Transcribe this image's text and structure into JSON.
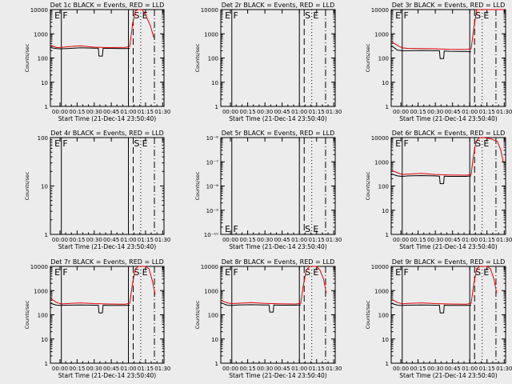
{
  "figure": {
    "start_time_label": "Start Time (21-Dec-14 23:50:40)",
    "ylabel": "Counts/sec",
    "colors": {
      "events": "#000000",
      "lld": "#e00000",
      "background": "#ececec"
    }
  },
  "chart_data": [
    {
      "title": "Det 1c BLACK = Events, RED = LLD",
      "type": "line",
      "yscale": "log",
      "ylim": [
        1,
        10000
      ],
      "yticks": [
        "1",
        "10",
        "100",
        "1000",
        "10000"
      ],
      "xlim": [
        -0.14,
        1.52
      ],
      "xticks": [
        "00:00",
        "00:15",
        "00:30",
        "00:45",
        "01:00",
        "01:15",
        "01:30"
      ],
      "vlines": [
        {
          "x": 0.02,
          "style": "solid"
        },
        {
          "x": 1.0,
          "style": "solid"
        },
        {
          "x": 1.07,
          "style": "dashed"
        },
        {
          "x": 1.18,
          "style": "dotted"
        },
        {
          "x": 1.38,
          "style": "dashdot"
        }
      ],
      "annotations": [
        {
          "text": "E",
          "x": -0.08,
          "ypos": "top"
        },
        {
          "text": "F",
          "x": 0.04,
          "ypos": "top"
        },
        {
          "text": "S",
          "x": 1.08,
          "ypos": "top"
        },
        {
          "text": "E",
          "x": 1.2,
          "ypos": "top"
        }
      ],
      "series": [
        {
          "role": "events",
          "x": [
            -0.14,
            -0.05,
            0.02,
            0.1,
            0.3,
            0.5,
            0.56,
            0.57,
            0.62,
            0.63,
            0.7,
            0.95,
            1.02
          ],
          "y": [
            270,
            245,
            240,
            245,
            265,
            255,
            255,
            120,
            120,
            255,
            250,
            245,
            250
          ]
        },
        {
          "role": "lld",
          "x": [
            -0.14,
            -0.05,
            0.02,
            0.1,
            0.3,
            0.5,
            0.7,
            0.95,
            1.02,
            1.06,
            1.1,
            1.15,
            1.2,
            1.25,
            1.32,
            1.37
          ],
          "y": [
            340,
            270,
            275,
            290,
            320,
            280,
            270,
            275,
            300,
            2500,
            9000,
            13000,
            10000,
            6000,
            2200,
            700
          ]
        }
      ]
    },
    {
      "title": "Det 2r BLACK = Events, RED = LLD",
      "type": "line",
      "yscale": "log",
      "ylim": [
        1,
        10000
      ],
      "yticks": [
        "1",
        "10",
        "100",
        "1000",
        "10000"
      ],
      "xlim": [
        -0.14,
        1.52
      ],
      "xticks": [
        "00:00",
        "00:15",
        "00:30",
        "00:45",
        "01:00",
        "01:15",
        "01:30"
      ],
      "vlines": [
        {
          "x": 0.02,
          "style": "solid"
        },
        {
          "x": 1.0,
          "style": "solid"
        },
        {
          "x": 1.07,
          "style": "dashed"
        },
        {
          "x": 1.18,
          "style": "dotted"
        },
        {
          "x": 1.38,
          "style": "dashdot"
        }
      ],
      "annotations": [
        {
          "text": "E",
          "x": -0.08,
          "ypos": "top"
        },
        {
          "text": "F",
          "x": 0.04,
          "ypos": "top"
        },
        {
          "text": "S",
          "x": 1.08,
          "ypos": "top"
        },
        {
          "text": "E",
          "x": 1.2,
          "ypos": "top"
        }
      ],
      "series": []
    },
    {
      "title": "Det 3r BLACK = Events, RED = LLD",
      "type": "line",
      "yscale": "log",
      "ylim": [
        1,
        10000
      ],
      "yticks": [
        "1",
        "10",
        "100",
        "1000",
        "10000"
      ],
      "xlim": [
        -0.14,
        1.52
      ],
      "xticks": [
        "00:00",
        "00:15",
        "00:30",
        "00:45",
        "01:00",
        "01:15",
        "01:30"
      ],
      "vlines": [
        {
          "x": 0.02,
          "style": "solid"
        },
        {
          "x": 1.0,
          "style": "solid"
        },
        {
          "x": 1.07,
          "style": "dashed"
        },
        {
          "x": 1.18,
          "style": "dotted"
        },
        {
          "x": 1.38,
          "style": "dashdot"
        }
      ],
      "annotations": [
        {
          "text": "E",
          "x": -0.08,
          "ypos": "top"
        },
        {
          "text": "F",
          "x": 0.04,
          "ypos": "top"
        },
        {
          "text": "S",
          "x": 1.08,
          "ypos": "top"
        },
        {
          "text": "E",
          "x": 1.2,
          "ypos": "top"
        }
      ],
      "series": [
        {
          "role": "events",
          "x": [
            -0.14,
            -0.05,
            0.02,
            0.1,
            0.3,
            0.5,
            0.56,
            0.57,
            0.62,
            0.63,
            0.7,
            0.95,
            1.02
          ],
          "y": [
            330,
            210,
            200,
            200,
            205,
            200,
            200,
            95,
            95,
            195,
            190,
            185,
            180
          ]
        },
        {
          "role": "lld",
          "x": [
            -0.14,
            -0.05,
            0.02,
            0.1,
            0.3,
            0.5,
            0.7,
            0.95,
            1.02,
            1.06,
            1.1,
            1.15,
            1.2,
            1.3,
            1.4,
            1.45,
            1.5
          ],
          "y": [
            480,
            330,
            260,
            250,
            245,
            240,
            230,
            225,
            240,
            1800,
            10000,
            14000,
            12000,
            11500,
            11000,
            10500,
            10000
          ]
        }
      ]
    },
    {
      "title": "Det 4r BLACK = Events, RED = LLD",
      "type": "line",
      "yscale": "log",
      "ylim": [
        1,
        100
      ],
      "yticks": [
        "1",
        "10",
        "100"
      ],
      "xlim": [
        -0.14,
        1.52
      ],
      "xticks": [
        "00:00",
        "00:15",
        "00:30",
        "00:45",
        "01:00",
        "01:15",
        "01:30"
      ],
      "vlines": [
        {
          "x": 0.02,
          "style": "solid"
        },
        {
          "x": 1.0,
          "style": "solid"
        },
        {
          "x": 1.07,
          "style": "dashed"
        },
        {
          "x": 1.18,
          "style": "dotted"
        },
        {
          "x": 1.38,
          "style": "dashdot"
        }
      ],
      "annotations": [
        {
          "text": "E",
          "x": -0.08,
          "ypos": "top"
        },
        {
          "text": "F",
          "x": 0.04,
          "ypos": "top"
        },
        {
          "text": "S",
          "x": 1.08,
          "ypos": "top"
        },
        {
          "text": "E",
          "x": 1.2,
          "ypos": "top"
        }
      ],
      "series": []
    },
    {
      "title": "Det 5r BLACK = Events, RED = LLD",
      "type": "line",
      "yscale": "log",
      "ylim": [
        1e-10,
        1e-06
      ],
      "yticks": [
        "10⁻¹⁰",
        "10⁻⁹",
        "10⁻⁸",
        "10⁻⁷",
        "10⁻⁶"
      ],
      "xlim": [
        -0.14,
        1.52
      ],
      "xticks": [
        "00:00",
        "00:15",
        "00:30",
        "00:45",
        "01:00",
        "01:15",
        "01:30"
      ],
      "vlines": [
        {
          "x": 0.02,
          "style": "solid"
        },
        {
          "x": 1.0,
          "style": "solid"
        },
        {
          "x": 1.07,
          "style": "dashed"
        },
        {
          "x": 1.18,
          "style": "dotted"
        },
        {
          "x": 1.38,
          "style": "dashdot"
        }
      ],
      "annotations": [
        {
          "text": "E",
          "x": -0.08,
          "ypos": "bottom"
        },
        {
          "text": "F",
          "x": 0.04,
          "ypos": "bottom"
        },
        {
          "text": "S",
          "x": 1.08,
          "ypos": "bottom"
        },
        {
          "text": "E",
          "x": 1.2,
          "ypos": "bottom"
        }
      ],
      "series": []
    },
    {
      "title": "Det 6r BLACK = Events, RED = LLD",
      "type": "line",
      "yscale": "log",
      "ylim": [
        1,
        10000
      ],
      "yticks": [
        "1",
        "10",
        "100",
        "1000",
        "10000"
      ],
      "xlim": [
        -0.14,
        1.52
      ],
      "xticks": [
        "00:00",
        "00:15",
        "00:30",
        "00:45",
        "01:00",
        "01:15",
        "01:30"
      ],
      "vlines": [
        {
          "x": 0.02,
          "style": "solid"
        },
        {
          "x": 1.0,
          "style": "solid"
        },
        {
          "x": 1.07,
          "style": "dashed"
        },
        {
          "x": 1.18,
          "style": "dotted"
        },
        {
          "x": 1.38,
          "style": "dashdot"
        }
      ],
      "annotations": [
        {
          "text": "E",
          "x": -0.08,
          "ypos": "top"
        },
        {
          "text": "F",
          "x": 0.04,
          "ypos": "top"
        },
        {
          "text": "S",
          "x": 1.08,
          "ypos": "top"
        },
        {
          "text": "E",
          "x": 1.2,
          "ypos": "top"
        }
      ],
      "series": [
        {
          "role": "events",
          "x": [
            -0.14,
            -0.05,
            0.02,
            0.1,
            0.3,
            0.5,
            0.56,
            0.57,
            0.62,
            0.63,
            0.7,
            0.95,
            1.02
          ],
          "y": [
            320,
            260,
            250,
            260,
            270,
            260,
            255,
            125,
            125,
            255,
            250,
            250,
            260
          ]
        },
        {
          "role": "lld",
          "x": [
            -0.14,
            -0.05,
            0.02,
            0.1,
            0.3,
            0.5,
            0.7,
            0.95,
            1.02,
            1.05,
            1.09,
            1.14,
            1.2,
            1.3,
            1.4,
            1.45,
            1.49
          ],
          "y": [
            450,
            350,
            300,
            310,
            330,
            300,
            285,
            280,
            300,
            1500,
            7000,
            11000,
            10500,
            9000,
            7000,
            3000,
            900
          ]
        }
      ]
    },
    {
      "title": "Det 7r BLACK = Events, RED = LLD",
      "type": "line",
      "yscale": "log",
      "ylim": [
        1,
        10000
      ],
      "yticks": [
        "1",
        "10",
        "100",
        "1000",
        "10000"
      ],
      "xlim": [
        -0.14,
        1.52
      ],
      "xticks": [
        "00:00",
        "00:15",
        "00:30",
        "00:45",
        "01:00",
        "01:15",
        "01:30"
      ],
      "vlines": [
        {
          "x": 0.02,
          "style": "solid"
        },
        {
          "x": 1.0,
          "style": "solid"
        },
        {
          "x": 1.07,
          "style": "dashed"
        },
        {
          "x": 1.18,
          "style": "dotted"
        },
        {
          "x": 1.38,
          "style": "dashdot"
        }
      ],
      "annotations": [
        {
          "text": "E",
          "x": -0.08,
          "ypos": "top"
        },
        {
          "text": "F",
          "x": 0.04,
          "ypos": "top"
        },
        {
          "text": "S",
          "x": 1.08,
          "ypos": "top"
        },
        {
          "text": "E",
          "x": 1.2,
          "ypos": "top"
        }
      ],
      "series": [
        {
          "role": "events",
          "x": [
            -0.14,
            -0.05,
            0.02,
            0.1,
            0.3,
            0.5,
            0.56,
            0.57,
            0.62,
            0.63,
            0.7,
            0.95,
            1.02
          ],
          "y": [
            300,
            250,
            245,
            250,
            255,
            250,
            250,
            120,
            120,
            250,
            245,
            245,
            250
          ]
        },
        {
          "role": "lld",
          "x": [
            -0.14,
            -0.05,
            0.02,
            0.1,
            0.3,
            0.5,
            0.7,
            0.95,
            1.02,
            1.06,
            1.1,
            1.15,
            1.2,
            1.25,
            1.3,
            1.35,
            1.39
          ],
          "y": [
            480,
            320,
            280,
            290,
            310,
            290,
            280,
            275,
            300,
            2000,
            8000,
            13000,
            14000,
            12000,
            8000,
            2500,
            700
          ]
        }
      ]
    },
    {
      "title": "Det 8r BLACK = Events, RED = LLD",
      "type": "line",
      "yscale": "log",
      "ylim": [
        1,
        10000
      ],
      "yticks": [
        "1",
        "10",
        "100",
        "1000",
        "10000"
      ],
      "xlim": [
        -0.14,
        1.52
      ],
      "xticks": [
        "00:00",
        "00:15",
        "00:30",
        "00:45",
        "01:00",
        "01:15",
        "01:30"
      ],
      "vlines": [
        {
          "x": 0.02,
          "style": "solid"
        },
        {
          "x": 1.0,
          "style": "solid"
        },
        {
          "x": 1.07,
          "style": "dashed"
        },
        {
          "x": 1.18,
          "style": "dotted"
        },
        {
          "x": 1.38,
          "style": "dashdot"
        }
      ],
      "annotations": [
        {
          "text": "E",
          "x": -0.08,
          "ypos": "top"
        },
        {
          "text": "F",
          "x": 0.04,
          "ypos": "top"
        },
        {
          "text": "S",
          "x": 1.08,
          "ypos": "top"
        },
        {
          "text": "E",
          "x": 1.2,
          "ypos": "top"
        }
      ],
      "series": [
        {
          "role": "events",
          "x": [
            -0.14,
            -0.05,
            0.02,
            0.1,
            0.3,
            0.5,
            0.56,
            0.57,
            0.62,
            0.63,
            0.7,
            0.95,
            1.02
          ],
          "y": [
            320,
            250,
            245,
            255,
            260,
            255,
            255,
            130,
            130,
            255,
            250,
            250,
            255
          ]
        },
        {
          "role": "lld",
          "x": [
            -0.14,
            -0.05,
            0.02,
            0.1,
            0.3,
            0.5,
            0.7,
            0.95,
            1.02,
            1.06,
            1.1,
            1.15,
            1.2,
            1.25,
            1.3,
            1.35,
            1.39
          ],
          "y": [
            400,
            310,
            290,
            300,
            320,
            295,
            285,
            280,
            300,
            1800,
            7000,
            12000,
            13500,
            11000,
            7000,
            3000,
            800
          ]
        }
      ]
    },
    {
      "title": "Det 9r BLACK = Events, RED = LLD",
      "type": "line",
      "yscale": "log",
      "ylim": [
        1,
        10000
      ],
      "yticks": [
        "1",
        "10",
        "100",
        "1000",
        "10000"
      ],
      "xlim": [
        -0.14,
        1.52
      ],
      "xticks": [
        "00:00",
        "00:15",
        "00:30",
        "00:45",
        "01:00",
        "01:15",
        "01:30"
      ],
      "vlines": [
        {
          "x": 0.02,
          "style": "solid"
        },
        {
          "x": 1.0,
          "style": "solid"
        },
        {
          "x": 1.07,
          "style": "dashed"
        },
        {
          "x": 1.18,
          "style": "dotted"
        },
        {
          "x": 1.38,
          "style": "dashdot"
        }
      ],
      "annotations": [
        {
          "text": "E",
          "x": -0.08,
          "ypos": "top"
        },
        {
          "text": "F",
          "x": 0.04,
          "ypos": "top"
        },
        {
          "text": "S",
          "x": 1.08,
          "ypos": "top"
        },
        {
          "text": "E",
          "x": 1.2,
          "ypos": "top"
        }
      ],
      "series": [
        {
          "role": "events",
          "x": [
            -0.14,
            -0.05,
            0.02,
            0.1,
            0.3,
            0.5,
            0.56,
            0.57,
            0.62,
            0.63,
            0.7,
            0.95,
            1.02
          ],
          "y": [
            300,
            250,
            245,
            250,
            255,
            250,
            250,
            120,
            120,
            250,
            245,
            245,
            250
          ]
        },
        {
          "role": "lld",
          "x": [
            -0.14,
            -0.05,
            0.02,
            0.1,
            0.3,
            0.5,
            0.7,
            0.95,
            1.02,
            1.06,
            1.1,
            1.15,
            1.2,
            1.25,
            1.3,
            1.35,
            1.39
          ],
          "y": [
            450,
            320,
            285,
            295,
            310,
            290,
            280,
            275,
            300,
            2000,
            8000,
            13000,
            13500,
            11000,
            8000,
            3000,
            800
          ]
        }
      ]
    }
  ]
}
